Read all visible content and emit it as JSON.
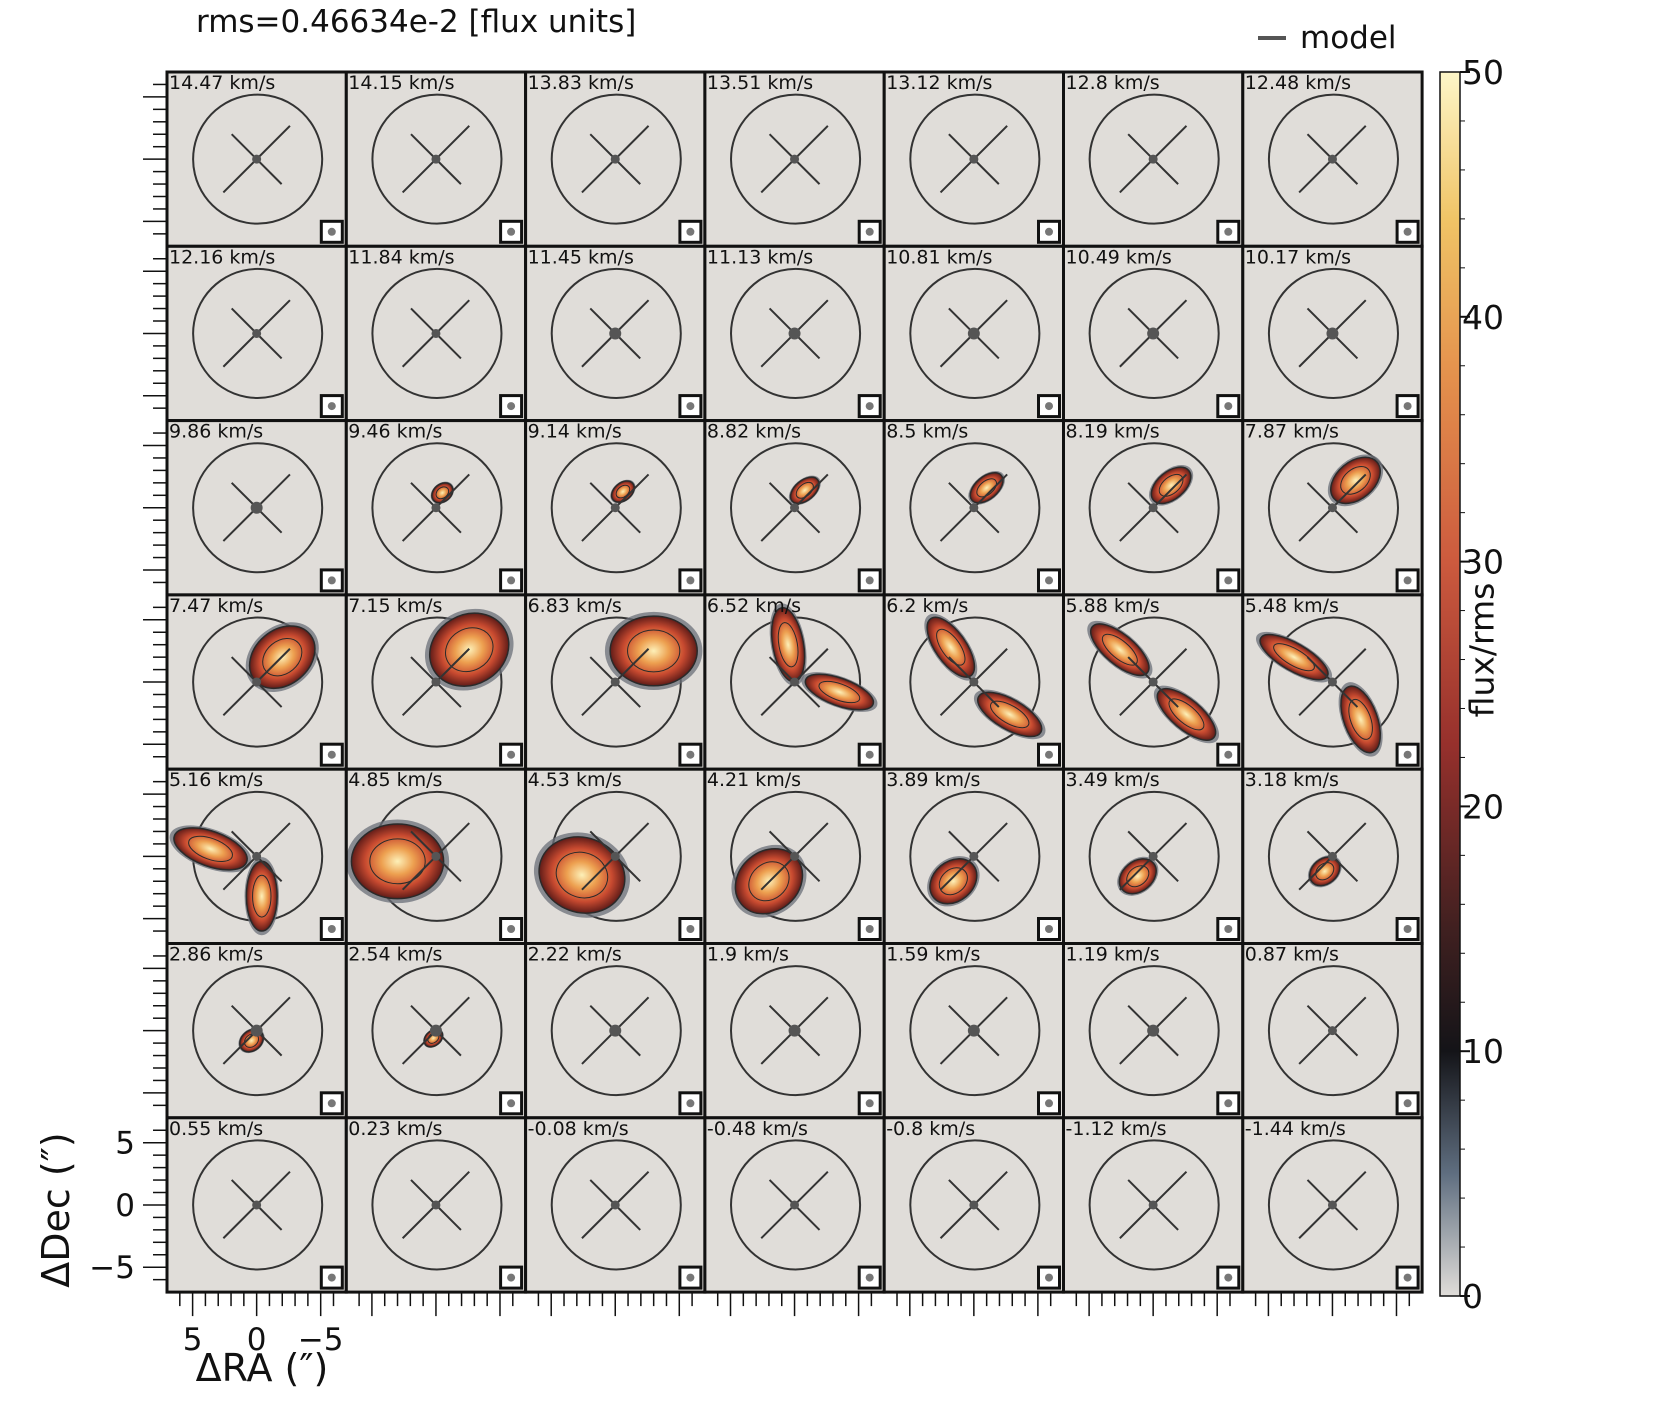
{
  "chart_data": {
    "type": "heatmap",
    "title": "rms=0.46634e-2 [flux units]",
    "legend": {
      "entries": [
        {
          "name": "model",
          "color": "#555555"
        }
      ],
      "position": "top-right"
    },
    "layout": {
      "rows": 7,
      "cols": 7
    },
    "channels": [
      "14.47 km/s",
      "14.15 km/s",
      "13.83 km/s",
      "13.51 km/s",
      "13.12 km/s",
      "12.8 km/s",
      "12.48 km/s",
      "12.16 km/s",
      "11.84 km/s",
      "11.45 km/s",
      "11.13 km/s",
      "10.81 km/s",
      "10.49 km/s",
      "10.17 km/s",
      "9.86 km/s",
      "9.46 km/s",
      "9.14 km/s",
      "8.82 km/s",
      "8.5 km/s",
      "8.19 km/s",
      "7.87 km/s",
      "7.47 km/s",
      "7.15 km/s",
      "6.83 km/s",
      "6.52 km/s",
      "6.2 km/s",
      "5.88 km/s",
      "5.48 km/s",
      "5.16 km/s",
      "4.85 km/s",
      "4.53 km/s",
      "4.21 km/s",
      "3.89 km/s",
      "3.49 km/s",
      "3.18 km/s",
      "2.86 km/s",
      "2.54 km/s",
      "2.22 km/s",
      "1.9 km/s",
      "1.59 km/s",
      "1.19 km/s",
      "0.87 km/s",
      "0.55 km/s",
      "0.23 km/s",
      "-0.08 km/s",
      "-0.48 km/s",
      "-0.8 km/s",
      "-1.12 km/s",
      "-1.44 km/s"
    ],
    "xaxis": {
      "label": "ΔRA (″)",
      "ticks": [
        -5,
        0,
        5
      ],
      "tick_labels": [
        "−5",
        "0",
        "5"
      ],
      "range": [
        7,
        -7
      ],
      "inverted": true
    },
    "yaxis": {
      "label": "ΔDec (″)",
      "ticks": [
        -5,
        0,
        5
      ],
      "tick_labels": [
        "−5",
        "0",
        "5"
      ],
      "range": [
        -7,
        7
      ]
    },
    "colorbar": {
      "label": "flux/rms",
      "range": [
        0,
        50
      ],
      "ticks": [
        0,
        10,
        20,
        30,
        40,
        50
      ],
      "tick_labels": [
        "0",
        "10",
        "20",
        "30",
        "40",
        "50"
      ]
    },
    "colors": {
      "background": "#e0ddd9",
      "contour": "#333333",
      "model": "#555555"
    }
  }
}
